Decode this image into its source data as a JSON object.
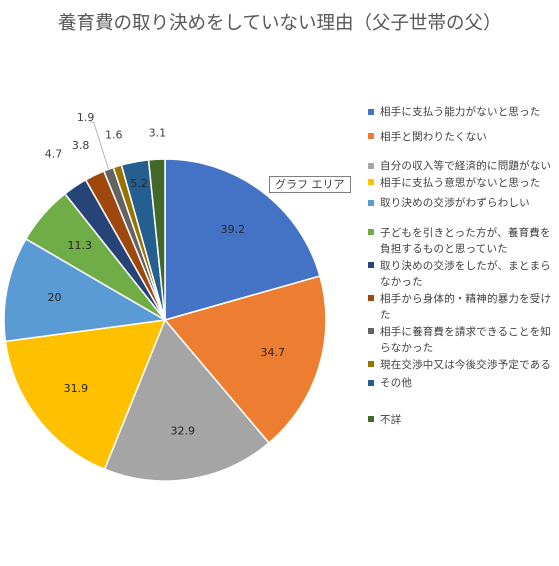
{
  "title": "養育費の取り決めをしていない理由（父子世帯の父）",
  "area_tooltip": "グラフ エリア",
  "chart_data": {
    "type": "pie",
    "title": "養育費の取り決めをしていない理由（父子世帯の父）",
    "labels": [
      "相手に支払う能力がないと思った",
      "相手と関わりたくない",
      "自分の収入等で経済的に問題がない",
      "相手に支払う意思がないと思った",
      "取り決めの交渉がわずらわしい",
      "子どもを引きとった方が、養育費を負担するものと思っていた",
      "取り決めの交渉をしたが、まとまらなかった",
      "相手から身体的・精神的暴力を受けた",
      "相手に養育費を請求できることを知らなかった",
      "現在交渉中又は今後交渉予定である",
      "その他",
      "不詳"
    ],
    "values": [
      39.2,
      34.7,
      32.9,
      31.9,
      20,
      11.3,
      4.7,
      3.8,
      1.9,
      1.6,
      5.2,
      3.1
    ],
    "value_labels": [
      "39.2",
      "34.7",
      "32.9",
      "31.9",
      "20",
      "11.3",
      "4.7",
      "3.8",
      "1.9",
      "1.6",
      "5.2",
      "3.1"
    ],
    "colors": [
      "#4472C4",
      "#ED7D31",
      "#A5A5A5",
      "#FFC000",
      "#5B9BD5",
      "#70AD47",
      "#264478",
      "#9E480E",
      "#636363",
      "#997300",
      "#255E91",
      "#43682B"
    ],
    "legend_position": "right"
  },
  "legend": {
    "items": [
      {
        "label": "相手に支払う能力がないと思った",
        "color": "#4472C4"
      },
      {
        "label": "相手と関わりたくない",
        "color": "#ED7D31"
      },
      {
        "label": "自分の収入等で経済的に問題がない",
        "color": "#A5A5A5"
      },
      {
        "label": "相手に支払う意思がないと思った",
        "color": "#FFC000"
      },
      {
        "label": "取り決めの交渉がわずらわしい",
        "color": "#5B9BD5"
      },
      {
        "label": "子どもを引きとった方が、養育費を負担するものと思っていた",
        "color": "#70AD47"
      },
      {
        "label": "取り決めの交渉をしたが、まとまらなかった",
        "color": "#264478"
      },
      {
        "label": "相手から身体的・精神的暴力を受けた",
        "color": "#9E480E"
      },
      {
        "label": "相手に養育費を請求できることを知らなかった",
        "color": "#636363"
      },
      {
        "label": "現在交渉中又は今後交渉予定である",
        "color": "#997300"
      },
      {
        "label": "その他",
        "color": "#255E91"
      },
      {
        "label": "不詳",
        "color": "#43682B"
      }
    ]
  }
}
